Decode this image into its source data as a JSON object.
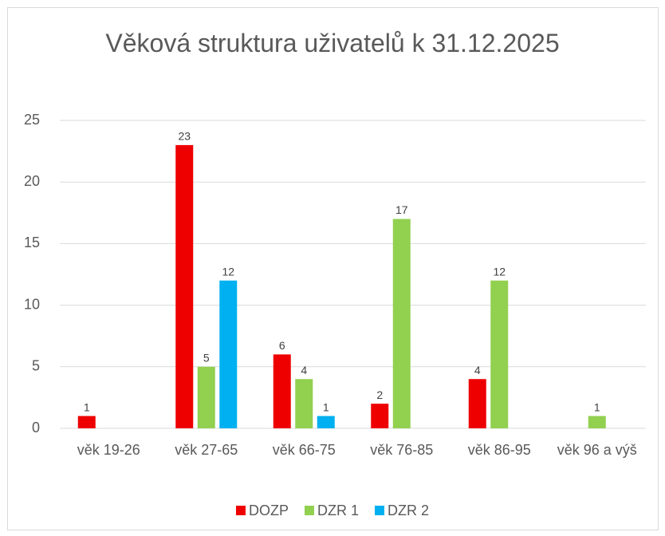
{
  "chart_data": {
    "type": "bar",
    "title": "Věková struktura uživatelů k 31.12.2025",
    "categories": [
      "věk 19-26",
      "věk 27-65",
      "věk 66-75",
      "věk 76-85",
      "věk 86-95",
      "věk 96 a výš"
    ],
    "series": [
      {
        "name": "DOZP",
        "color": "#ee0000",
        "values": [
          1,
          23,
          6,
          2,
          4,
          null
        ]
      },
      {
        "name": "DZR 1",
        "color": "#92d050",
        "values": [
          null,
          5,
          4,
          17,
          12,
          1
        ]
      },
      {
        "name": "DZR 2",
        "color": "#00b0f0",
        "values": [
          null,
          12,
          1,
          null,
          null,
          null
        ]
      }
    ],
    "ylim": [
      0,
      25
    ],
    "yticks": [
      0,
      5,
      10,
      15,
      20,
      25
    ],
    "grid": true,
    "legend": "bottom",
    "data_labels": true
  }
}
